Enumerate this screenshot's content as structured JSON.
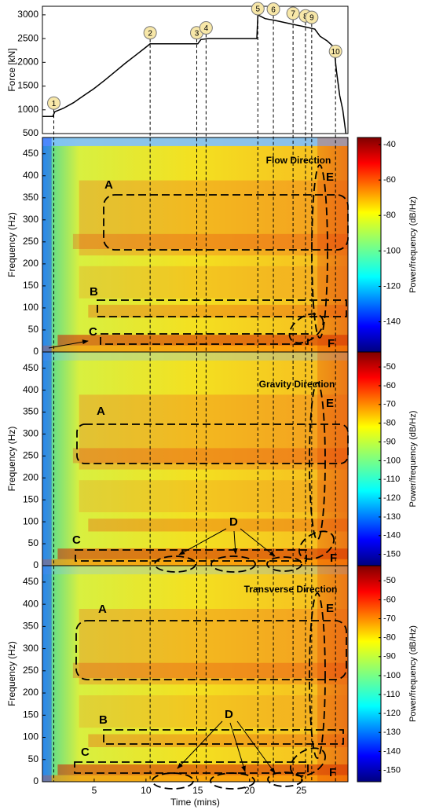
{
  "chart_data": [
    {
      "type": "line",
      "ylabel": "Force [kN]",
      "color": "#000000",
      "x": [
        0,
        1.0,
        1.2,
        2,
        3,
        4,
        5,
        6,
        7,
        8,
        9,
        10,
        10.4,
        15,
        15.3,
        16,
        20.7,
        20.8,
        21.5,
        22.5,
        24.2,
        25.3,
        26.3,
        26.8,
        27.5,
        28,
        28.2,
        28.4,
        28.7,
        29,
        29.3
      ],
      "values": [
        860,
        860,
        960,
        1030,
        1150,
        1300,
        1450,
        1620,
        1800,
        1980,
        2150,
        2320,
        2390,
        2390,
        2480,
        2500,
        2500,
        3000,
        2920,
        2880,
        2800,
        2750,
        2700,
        2550,
        2450,
        2350,
        2200,
        1800,
        1300,
        1000,
        500
      ],
      "xlim": [
        0,
        29.5
      ],
      "ylim": [
        500,
        3180
      ],
      "yticks": [
        500,
        1000,
        1500,
        2000,
        2500,
        3000
      ],
      "events": [
        {
          "label": "1",
          "time": 1.1
        },
        {
          "label": "2",
          "time": 10.4
        },
        {
          "label": "3",
          "time": 14.9
        },
        {
          "label": "4",
          "time": 15.8
        },
        {
          "label": "5",
          "time": 20.8
        },
        {
          "label": "6",
          "time": 22.3
        },
        {
          "label": "7",
          "time": 24.2
        },
        {
          "label": "8",
          "time": 25.4
        },
        {
          "label": "9",
          "time": 26.0
        },
        {
          "label": "10",
          "time": 28.3
        }
      ]
    },
    {
      "type": "heatmap",
      "title": "Flow Direction",
      "ylabel": "Frequency (Hz)",
      "xlim": [
        0,
        29.5
      ],
      "ylim": [
        0,
        487
      ],
      "yticks": [
        0,
        50,
        100,
        150,
        200,
        250,
        300,
        350,
        400,
        450
      ],
      "colorbar": {
        "label": "Power/frequency (dB/Hz)",
        "lim": [
          -157,
          -36
        ],
        "ticks": [
          -40,
          -60,
          -80,
          -100,
          -120,
          -140
        ]
      },
      "annotations": [
        "A",
        "B",
        "C",
        "E",
        "F"
      ]
    },
    {
      "type": "heatmap",
      "title": "Gravity Direction",
      "ylabel": "Frequency (Hz)",
      "xlim": [
        0,
        29.5
      ],
      "ylim": [
        0,
        487
      ],
      "yticks": [
        0,
        50,
        100,
        150,
        200,
        250,
        300,
        350,
        400,
        450
      ],
      "colorbar": {
        "label": "Power/frequency (dB/Hz)",
        "lim": [
          -156,
          -42
        ],
        "ticks": [
          -50,
          -60,
          -70,
          -80,
          -90,
          -100,
          -110,
          -120,
          -130,
          -140,
          -150
        ]
      },
      "annotations": [
        "A",
        "C",
        "D",
        "E",
        "F"
      ]
    },
    {
      "type": "heatmap",
      "title": "Transverse Direction",
      "ylabel": "Frequency (Hz)",
      "xlabel": "Time (mins)",
      "xlim": [
        0,
        29.5
      ],
      "ylim": [
        0,
        487
      ],
      "yticks": [
        0,
        50,
        100,
        150,
        200,
        250,
        300,
        350,
        400,
        450
      ],
      "xticks": [
        5,
        10,
        15,
        20,
        25
      ],
      "colorbar": {
        "label": "Power/frequency (dB/Hz)",
        "lim": [
          -156,
          -42
        ],
        "ticks": [
          -50,
          -60,
          -70,
          -80,
          -90,
          -100,
          -110,
          -120,
          -130,
          -140,
          -150
        ]
      },
      "annotations": [
        "A",
        "B",
        "C",
        "D",
        "E",
        "F"
      ]
    }
  ]
}
